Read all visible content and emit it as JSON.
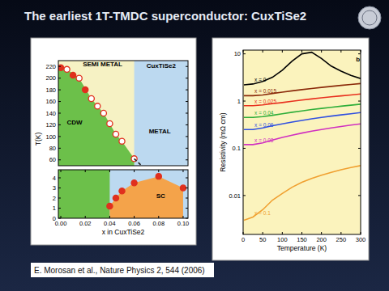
{
  "slide": {
    "title": "The earliest 1T-TMDC superconductor: CuxTiSe2",
    "citation": "E. Morosan et al., Nature Physics 2, 544 (2006)"
  },
  "chart_data": [
    {
      "type": "scatter",
      "ylabel": "T(K)",
      "xlim": [
        -0.002,
        0.104
      ],
      "ylim": [
        50,
        230
      ],
      "yticks": [
        60,
        80,
        100,
        120,
        140,
        160,
        180,
        200,
        220
      ],
      "series": [
        {
          "color": "#e0301e",
          "marker": "circle",
          "x": [
            0,
            0.01,
            0.02
          ],
          "values": [
            218,
            205,
            180
          ]
        },
        {
          "color": "#e0301e",
          "marker": "open_circle",
          "x": [
            0.005,
            0.015,
            0.025,
            0.03,
            0.035,
            0.04,
            0.045,
            0.05,
            0.06
          ],
          "values": [
            215,
            200,
            165,
            152,
            140,
            122,
            104,
            92,
            62
          ]
        },
        {
          "type": "line",
          "color": "#222222",
          "line_style": "dashed",
          "marker": "none",
          "x": [
            0.06,
            0.066
          ],
          "values": [
            62,
            50
          ]
        }
      ],
      "annotations": [
        {
          "text": "SEMI METAL",
          "x": 0.018,
          "y": 220
        },
        {
          "text": "CDW",
          "x": 0.005,
          "y": 120
        },
        {
          "text": "METAL",
          "x": 0.072,
          "y": 105
        },
        {
          "text": "CuxTiSe2",
          "x": 0.07,
          "y": 218
        }
      ]
    },
    {
      "type": "scatter",
      "xlabel": "x in CuxTiSe2",
      "xlim": [
        -0.002,
        0.104
      ],
      "ylim": [
        0,
        4.8
      ],
      "xticks": [
        {
          "value": 0,
          "label": "0.00"
        },
        {
          "value": 0.02,
          "label": "0.02"
        },
        {
          "value": 0.04,
          "label": "0.04"
        },
        {
          "value": 0.06,
          "label": "0.06"
        },
        {
          "value": 0.08,
          "label": "0.08"
        },
        {
          "value": 0.1,
          "label": "0.10"
        }
      ],
      "yticks": [
        0,
        1,
        2,
        3,
        4
      ],
      "series": [
        {
          "color": "#e0301e",
          "marker": "circle",
          "x": [
            0.04,
            0.045,
            0.05,
            0.06,
            0.08,
            0.1
          ],
          "values": [
            1.2,
            2.0,
            2.7,
            3.5,
            4.15,
            3.0
          ]
        }
      ],
      "annotations": [
        {
          "text": "SC",
          "x": 0.078,
          "y": 2.0
        }
      ]
    },
    {
      "type": "line",
      "log": "y",
      "xlabel": "Temperature (K)",
      "ylabel": "Resistivity (mΩ cm)",
      "xlim": [
        0,
        300
      ],
      "ylim": [
        0.0015,
        12
      ],
      "xticks": [
        0,
        50,
        100,
        150,
        200,
        250,
        300
      ],
      "yticks": [
        0.01,
        0.1,
        1,
        10
      ],
      "x": [
        2,
        25,
        50,
        75,
        100,
        125,
        150,
        175,
        200,
        225,
        250,
        275,
        300
      ],
      "series": [
        {
          "name": "x = 0",
          "color": "#000000",
          "values": [
            2.2,
            2.3,
            2.6,
            3.2,
            4.5,
            7.0,
            10.0,
            10.8,
            8.0,
            5.5,
            4.3,
            3.5,
            3.0
          ]
        },
        {
          "name": "x = 0.015",
          "color": "#8b2a0a",
          "values": [
            1.3,
            1.3,
            1.35,
            1.45,
            1.55,
            1.65,
            1.75,
            1.85,
            1.95,
            2.05,
            2.15,
            2.25,
            2.35
          ]
        },
        {
          "name": "x = 0.025",
          "color": "#e8301e",
          "values": [
            0.8,
            0.8,
            0.83,
            0.88,
            0.93,
            0.99,
            1.05,
            1.11,
            1.17,
            1.23,
            1.29,
            1.35,
            1.41
          ]
        },
        {
          "name": "x = 0.04",
          "color": "#2fae3a",
          "values": [
            0.45,
            0.45,
            0.47,
            0.5,
            0.54,
            0.58,
            0.62,
            0.66,
            0.7,
            0.74,
            0.78,
            0.82,
            0.86
          ]
        },
        {
          "name": "x = 0.06",
          "color": "#3050e0",
          "values": [
            0.25,
            0.25,
            0.27,
            0.3,
            0.33,
            0.36,
            0.39,
            0.42,
            0.45,
            0.48,
            0.51,
            0.54,
            0.57
          ]
        },
        {
          "name": "x = 0.08",
          "color": "#d030c0",
          "values": [
            0.12,
            0.12,
            0.13,
            0.15,
            0.17,
            0.19,
            0.21,
            0.23,
            0.25,
            0.27,
            0.29,
            0.31,
            0.33
          ]
        },
        {
          "name": "x = 0.1",
          "color": "#f0a030",
          "values": [
            0.003,
            0.0035,
            0.005,
            0.008,
            0.011,
            0.015,
            0.019,
            0.023,
            0.027,
            0.031,
            0.035,
            0.039,
            0.043
          ]
        }
      ],
      "annotations": [
        {
          "text": "b",
          "x": 288,
          "y": 7
        }
      ]
    }
  ]
}
